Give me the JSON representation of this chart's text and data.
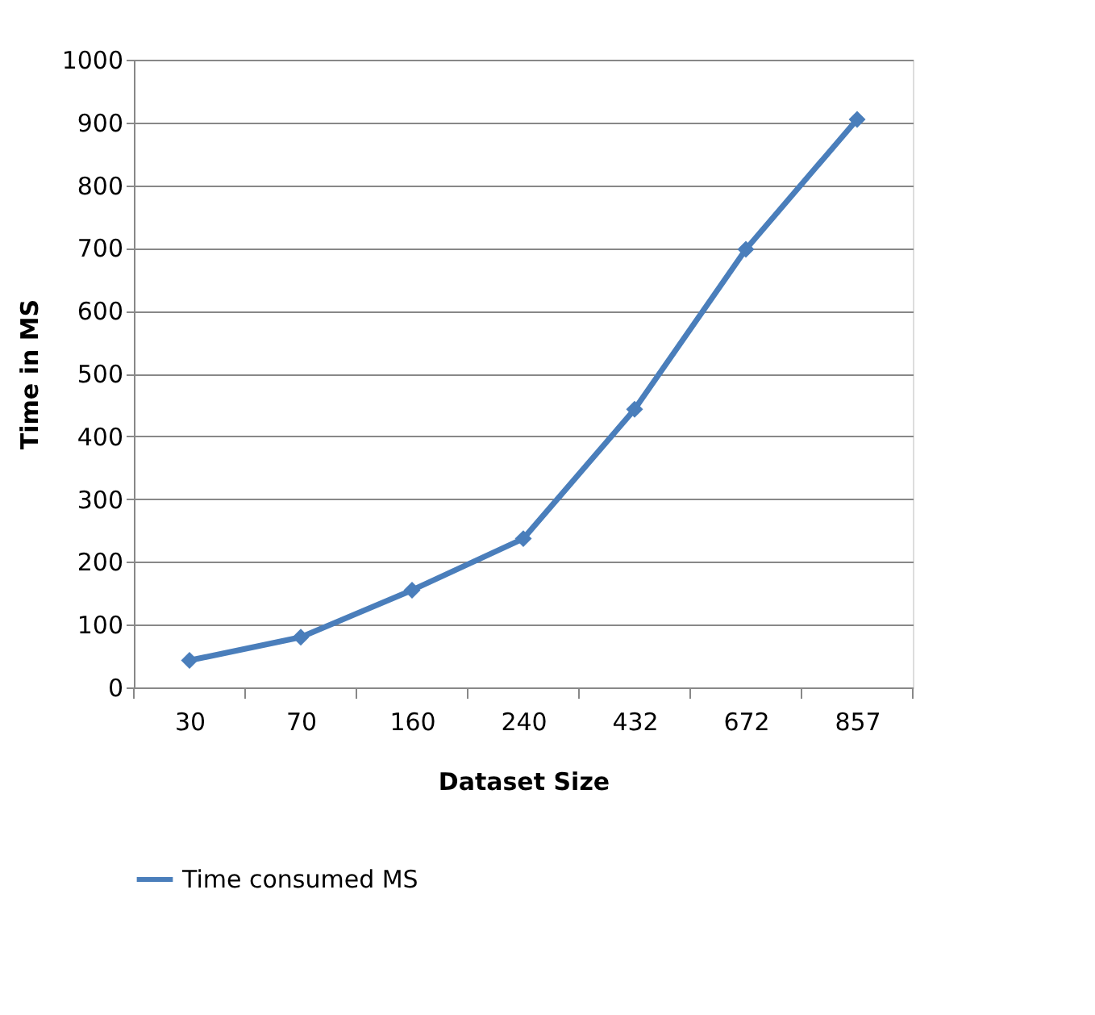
{
  "chart_data": {
    "type": "line",
    "xlabel": "Dataset Size",
    "ylabel": "Time in MS",
    "categories": [
      "30",
      "70",
      "160",
      "240",
      "432",
      "672",
      "857"
    ],
    "series": [
      {
        "name": "Time consumed MS",
        "color": "#4a7ebb",
        "values": [
          43,
          80,
          155,
          237,
          443,
          698,
          905
        ]
      }
    ],
    "ylim": [
      0,
      1000
    ],
    "yticks": [
      0,
      100,
      200,
      300,
      400,
      500,
      600,
      700,
      800,
      900,
      1000
    ],
    "grid": "y",
    "legend": "bottom",
    "marker": "diamond",
    "line_style": "solid"
  }
}
